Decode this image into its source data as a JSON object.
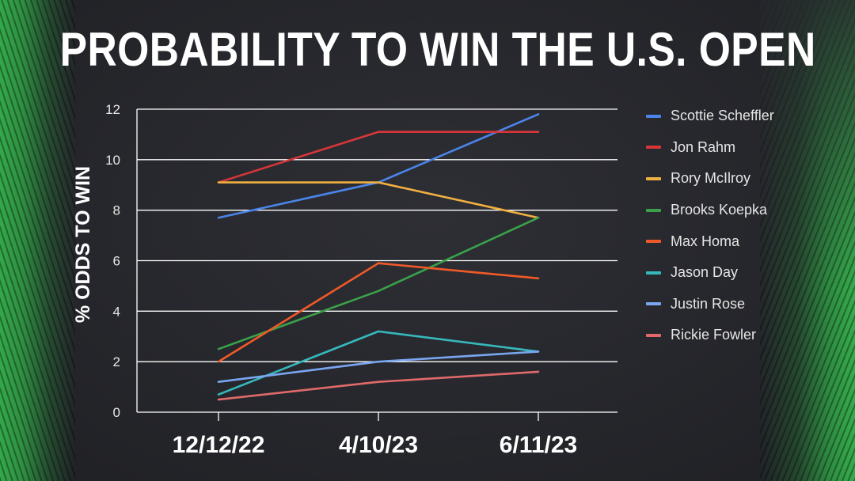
{
  "chart_data": {
    "type": "line",
    "title": "PROBABILITY TO WIN THE U.S. OPEN",
    "ylabel": "% ODDS TO WIN",
    "xlabel": "",
    "categories": [
      "12/12/22",
      "4/10/23",
      "6/11/23"
    ],
    "ylim": [
      0,
      12
    ],
    "yticks": [
      "0",
      "2",
      "4",
      "6",
      "8",
      "10",
      "12"
    ],
    "grid": true,
    "legend_position": "right",
    "series": [
      {
        "name": "Scottie Scheffler",
        "color": "#4a84e8",
        "values": [
          7.7,
          9.1,
          11.8
        ]
      },
      {
        "name": "Jon Rahm",
        "color": "#d6363a",
        "values": [
          9.1,
          11.1,
          11.1
        ]
      },
      {
        "name": "Rory McIlroy",
        "color": "#f0b040",
        "values": [
          9.1,
          9.1,
          7.7
        ]
      },
      {
        "name": "Brooks Koepka",
        "color": "#3aa14a",
        "values": [
          2.5,
          4.8,
          7.7
        ]
      },
      {
        "name": "Max Homa",
        "color": "#f05a28",
        "values": [
          2.0,
          5.9,
          5.3
        ]
      },
      {
        "name": "Jason Day",
        "color": "#36b8bc",
        "values": [
          0.7,
          3.2,
          2.4
        ]
      },
      {
        "name": "Justin Rose",
        "color": "#7aa6f0",
        "values": [
          1.2,
          2.0,
          2.4
        ]
      },
      {
        "name": "Rickie Fowler",
        "color": "#e06a6a",
        "values": [
          0.5,
          1.2,
          1.6
        ]
      }
    ]
  }
}
